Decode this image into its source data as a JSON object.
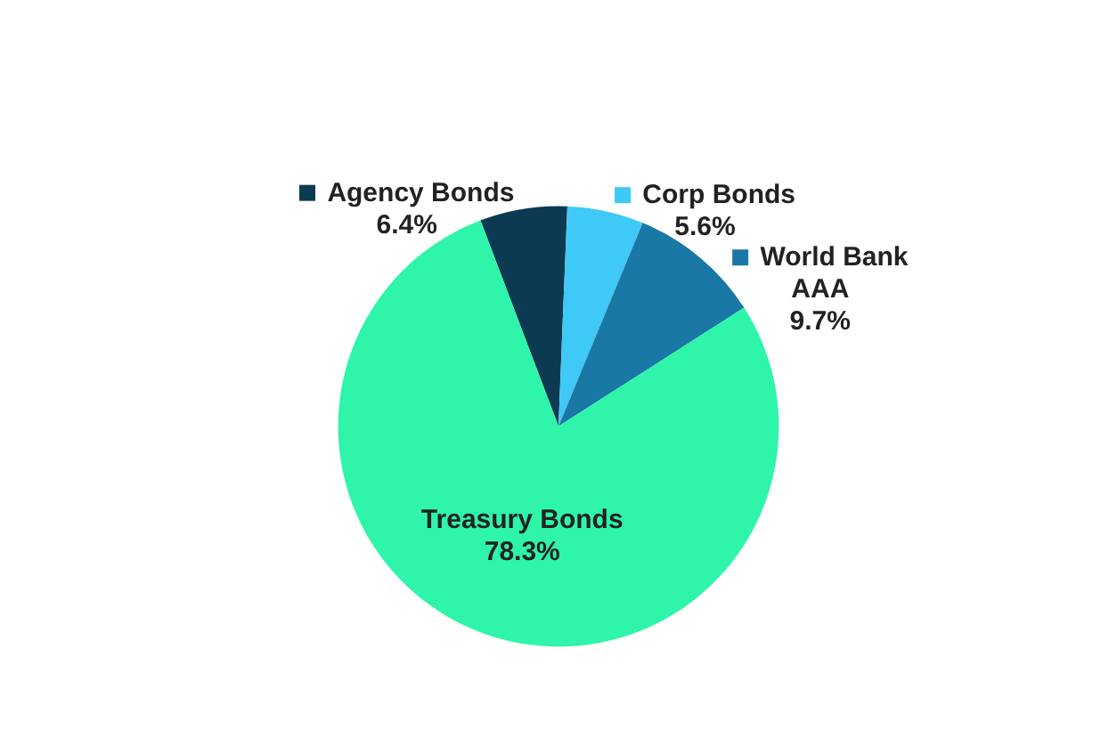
{
  "chart_data": {
    "type": "pie",
    "categories": [
      "Agency Bonds",
      "Corp Bonds",
      "World Bank AAA",
      "Treasury Bonds"
    ],
    "values": [
      6.4,
      5.6,
      9.7,
      78.3
    ],
    "colors": [
      "#0c3a52",
      "#3fc9f6",
      "#1a78a6",
      "#2ef5a9"
    ],
    "value_labels": [
      "6.4%",
      "5.6%",
      "9.7%",
      "78.3%"
    ],
    "legend": "top"
  }
}
